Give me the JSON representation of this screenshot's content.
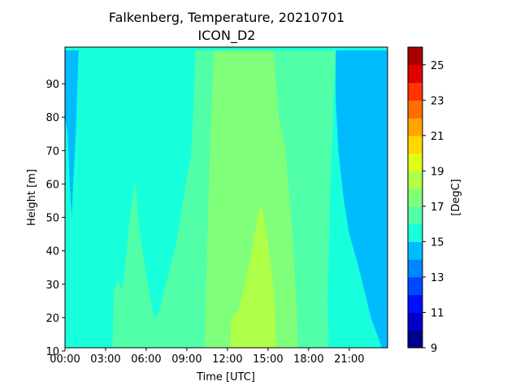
{
  "chart_data": {
    "type": "heatmap",
    "title": "Falkenberg, Temperature, 20210701",
    "subtitle": "ICON_D2",
    "xlabel": "Time [UTC]",
    "ylabel": "Height [m]",
    "colorbar_label": "[DegC]",
    "xlim_hours": [
      0,
      23.83
    ],
    "ylim": [
      10,
      100
    ],
    "x_ticks": [
      {
        "hour": 0,
        "label": "00:00"
      },
      {
        "hour": 3,
        "label": "03:00"
      },
      {
        "hour": 6,
        "label": "06:00"
      },
      {
        "hour": 9,
        "label": "09:00"
      },
      {
        "hour": 12,
        "label": "12:00"
      },
      {
        "hour": 15,
        "label": "15:00"
      },
      {
        "hour": 18,
        "label": "18:00"
      },
      {
        "hour": 21,
        "label": "21:00"
      }
    ],
    "y_ticks": [
      {
        "value": 10,
        "label": "10"
      },
      {
        "value": 20,
        "label": "20"
      },
      {
        "value": 30,
        "label": "30"
      },
      {
        "value": 40,
        "label": "40"
      },
      {
        "value": 50,
        "label": "50"
      },
      {
        "value": 60,
        "label": "60"
      },
      {
        "value": 70,
        "label": "70"
      },
      {
        "value": 80,
        "label": "80"
      },
      {
        "value": 90,
        "label": "90"
      }
    ],
    "colorbar": {
      "min": 9,
      "max": 26,
      "step": 1,
      "ticks": [
        9,
        11,
        13,
        15,
        17,
        19,
        21,
        23,
        25
      ],
      "colors": [
        "#00008f",
        "#0000c8",
        "#0010ff",
        "#0048ff",
        "#0084ff",
        "#00bcff",
        "#18ffdc",
        "#50ffa8",
        "#80ff7a",
        "#b0ff48",
        "#e0ff18",
        "#ffd800",
        "#ffa400",
        "#ff6c00",
        "#ff3400",
        "#e00000",
        "#a80000"
      ]
    },
    "regions": [
      {
        "name": "cool-bottom-strip",
        "temp": 14.5,
        "color": "#00bcff",
        "outline": [
          [
            0,
            10
          ],
          [
            23.83,
            10
          ],
          [
            23.83,
            9.3
          ],
          [
            0,
            9.3
          ]
        ]
      },
      {
        "name": "cool-early-morning",
        "temp": 14.5,
        "color": "#00bcff",
        "outline": [
          [
            0,
            100
          ],
          [
            1.0,
            100
          ],
          [
            0.8,
            75
          ],
          [
            0.6,
            60
          ],
          [
            0.5,
            50
          ],
          [
            0.35,
            60
          ],
          [
            0.2,
            75
          ],
          [
            0,
            80
          ]
        ]
      },
      {
        "name": "cool-evening",
        "temp": 14.5,
        "color": "#00bcff",
        "outline": [
          [
            20.0,
            100
          ],
          [
            23.83,
            100
          ],
          [
            23.83,
            10
          ],
          [
            23.5,
            10
          ],
          [
            22.6,
            20
          ],
          [
            21.7,
            35
          ],
          [
            21.0,
            45
          ],
          [
            20.6,
            55
          ],
          [
            20.2,
            70
          ],
          [
            20.0,
            85
          ]
        ]
      },
      {
        "name": "warm-day",
        "temp": 16.5,
        "color": "#50ffa8",
        "outline": [
          [
            3.5,
            10
          ],
          [
            3.6,
            28
          ],
          [
            3.9,
            31
          ],
          [
            4.2,
            28
          ],
          [
            4.5,
            38
          ],
          [
            4.8,
            51
          ],
          [
            5.1,
            58
          ],
          [
            5.2,
            61
          ],
          [
            5.4,
            50
          ],
          [
            5.8,
            38
          ],
          [
            6.2,
            28
          ],
          [
            6.6,
            20
          ],
          [
            7.0,
            22
          ],
          [
            7.3,
            28
          ],
          [
            7.7,
            34
          ],
          [
            8.2,
            42
          ],
          [
            8.6,
            52
          ],
          [
            9.0,
            62
          ],
          [
            9.3,
            68
          ],
          [
            9.5,
            85
          ],
          [
            9.6,
            100
          ],
          [
            20.0,
            100
          ],
          [
            19.8,
            80
          ],
          [
            19.6,
            60
          ],
          [
            19.5,
            40
          ],
          [
            19.4,
            25
          ],
          [
            19.5,
            10
          ]
        ]
      },
      {
        "name": "warmer-midday",
        "temp": 17.5,
        "color": "#80ff7a",
        "outline": [
          [
            10.3,
            10
          ],
          [
            10.5,
            40
          ],
          [
            10.7,
            70
          ],
          [
            10.9,
            90
          ],
          [
            11.0,
            100
          ],
          [
            15.4,
            100
          ],
          [
            15.8,
            80
          ],
          [
            16.3,
            70
          ],
          [
            16.5,
            60
          ],
          [
            16.8,
            45
          ],
          [
            17.1,
            25
          ],
          [
            17.2,
            10
          ]
        ]
      },
      {
        "name": "warmest-afternoon",
        "temp": 18.5,
        "color": "#b0ff48",
        "outline": [
          [
            12.2,
            10
          ],
          [
            12.3,
            20
          ],
          [
            12.8,
            22
          ],
          [
            13.2,
            28
          ],
          [
            13.8,
            40
          ],
          [
            14.2,
            50
          ],
          [
            14.5,
            54
          ],
          [
            14.9,
            45
          ],
          [
            15.2,
            36
          ],
          [
            15.5,
            25
          ],
          [
            15.6,
            10
          ]
        ]
      }
    ]
  }
}
